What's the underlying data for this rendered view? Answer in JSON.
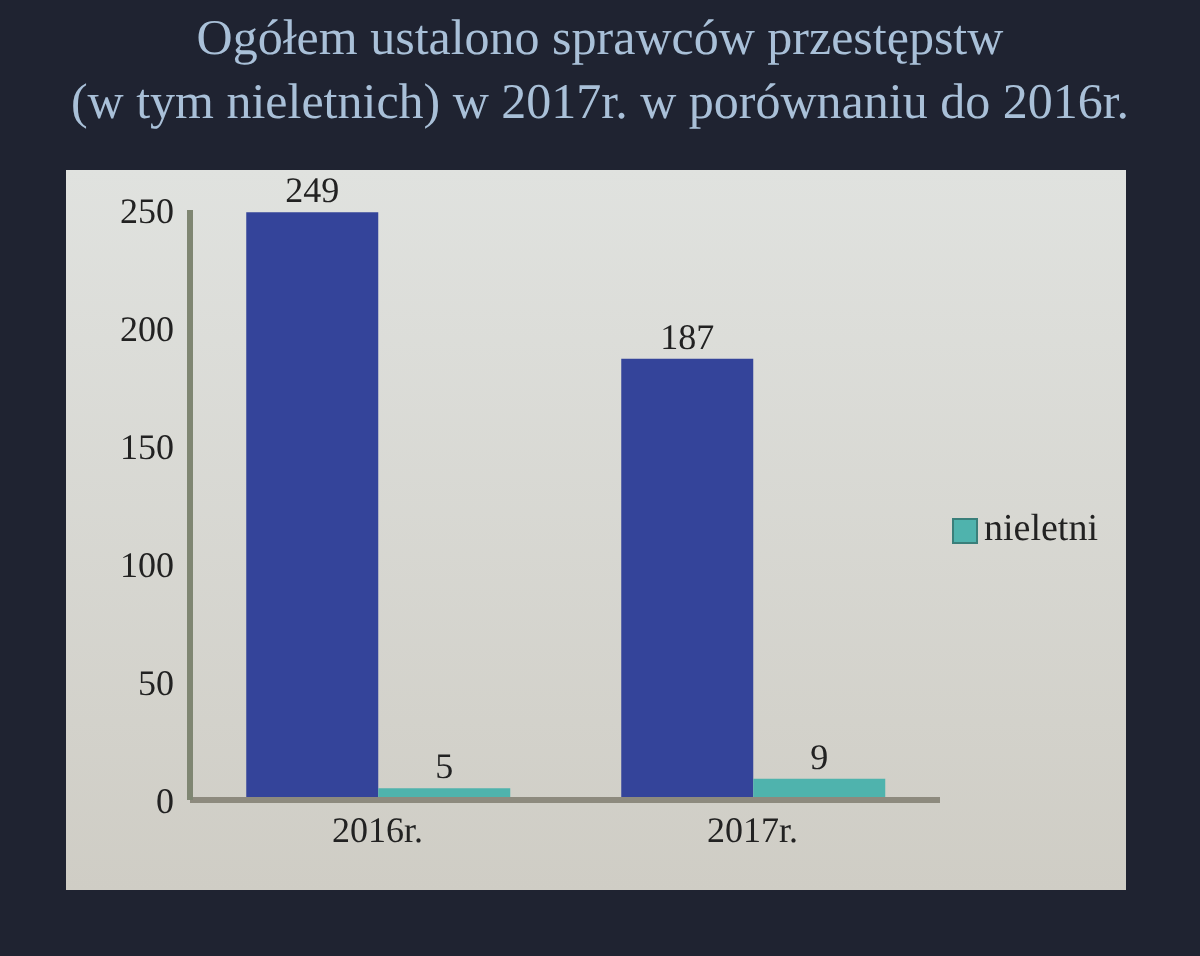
{
  "chart_data": {
    "type": "bar",
    "title": "Ogółem ustalono sprawców przestępstw\n(w tym nieletnich) w 2017r. w porównaniu do 2016r.",
    "categories": [
      "2016r.",
      "2017r."
    ],
    "series": [
      {
        "color": "#34449a",
        "values": [
          249,
          187
        ]
      },
      {
        "name": "nieletni",
        "color": "#4fb3ad",
        "values": [
          5,
          9
        ]
      }
    ],
    "ylim": [
      0,
      250
    ],
    "yticks": [
      0,
      50,
      100,
      150,
      200,
      250
    ],
    "legend": "right",
    "data_labels": true
  }
}
